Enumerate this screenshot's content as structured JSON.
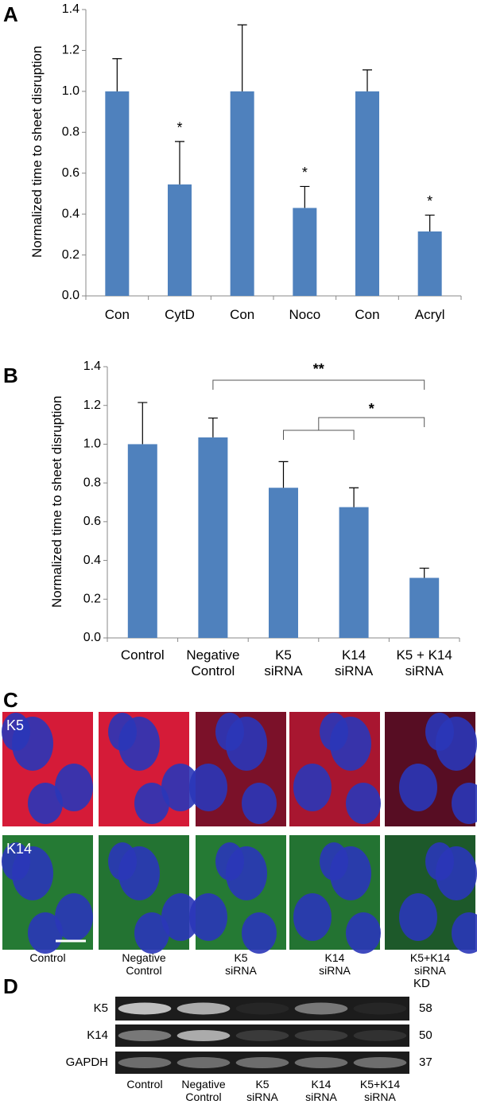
{
  "chart_data": [
    {
      "type": "bar",
      "label": "A",
      "ylabel": "Normalized time to sheet disruption",
      "categories": [
        "Con",
        "CytD",
        "Con",
        "Noco",
        "Con",
        "Acryl"
      ],
      "values": [
        1.0,
        0.545,
        1.0,
        0.43,
        1.0,
        0.315
      ],
      "errors": [
        0.16,
        0.21,
        0.325,
        0.105,
        0.105,
        0.08
      ],
      "annotations": [
        null,
        "*",
        null,
        "*",
        null,
        "*"
      ],
      "color": "#4f81bd",
      "ylim": [
        0,
        1.4
      ],
      "yticks": [
        {
          "value": 0,
          "label": "0.0"
        },
        0.2,
        0.4,
        0.6,
        0.8,
        {
          "value": 1,
          "label": "1.0"
        },
        1.2,
        1.4
      ]
    },
    {
      "type": "bar",
      "label": "B",
      "ylabel": "Normalized time to sheet disruption",
      "categories": [
        "Control",
        "Negative\nControl",
        "K5\nsiRNA",
        "K14\nsiRNA",
        "K5 + K14\nsiRNA"
      ],
      "values": [
        1.0,
        1.035,
        0.775,
        0.675,
        0.31
      ],
      "errors": [
        0.215,
        0.1,
        0.135,
        0.1,
        0.05
      ],
      "significance": [
        "**",
        "*"
      ],
      "color": "#4f81bd",
      "ylim": [
        0,
        1.4
      ],
      "yticks": [
        {
          "value": 0,
          "label": "0.0"
        },
        0.2,
        0.4,
        0.6,
        0.8,
        {
          "value": 1,
          "label": "1.0"
        },
        1.2,
        1.4
      ]
    }
  ],
  "panel_c": {
    "label": "C",
    "rows": [
      "K5",
      "K14"
    ],
    "columns": [
      "Control",
      "Negative\nControl",
      "K5\nsiRNA",
      "K14\nsiRNA",
      "K5+K14\nsiRNA"
    ]
  },
  "panel_d": {
    "label": "D",
    "unit": "KD",
    "rows": [
      {
        "name": "K5",
        "kd": 58
      },
      {
        "name": "K14",
        "kd": 50
      },
      {
        "name": "GAPDH",
        "kd": 37
      }
    ],
    "columns": [
      "Control",
      "Negative\nControl",
      "K5\nsiRNA",
      "K14\nsiRNA",
      "K5+K14\nsiRNA"
    ]
  }
}
